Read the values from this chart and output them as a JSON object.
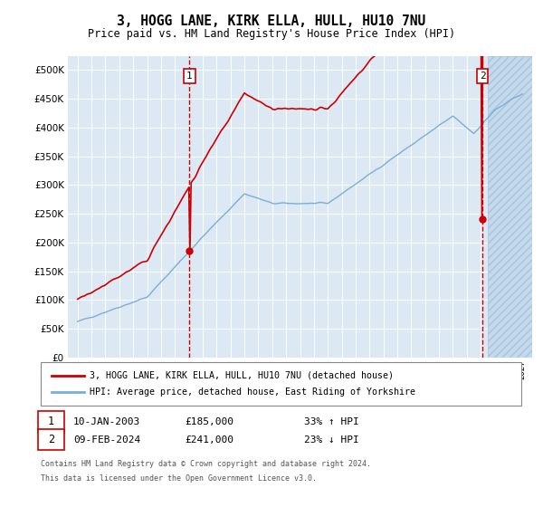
{
  "title": "3, HOGG LANE, KIRK ELLA, HULL, HU10 7NU",
  "subtitle": "Price paid vs. HM Land Registry's House Price Index (HPI)",
  "background_color": "#ffffff",
  "plot_bg_color": "#dce9f5",
  "red_line_color": "#cc0000",
  "blue_line_color": "#7aaed6",
  "annotation1": {
    "label": "1",
    "year": 2003.05,
    "price": 185000
  },
  "annotation2": {
    "label": "2",
    "year": 2024.12,
    "price": 241000
  },
  "legend_line1": "3, HOGG LANE, KIRK ELLA, HULL, HU10 7NU (detached house)",
  "legend_line2": "HPI: Average price, detached house, East Riding of Yorkshire",
  "footer1": "Contains HM Land Registry data © Crown copyright and database right 2024.",
  "footer2": "This data is licensed under the Open Government Licence v3.0.",
  "ylim": [
    0,
    525000
  ],
  "yticks": [
    0,
    50000,
    100000,
    150000,
    200000,
    250000,
    300000,
    350000,
    400000,
    450000,
    500000
  ],
  "xlim_left": 1994.3,
  "xlim_right": 2027.7,
  "hatch_start": 2024.5,
  "note1_date": "10-JAN-2003",
  "note1_price": "£185,000",
  "note1_hpi": "33% ↑ HPI",
  "note2_date": "09-FEB-2024",
  "note2_price": "£241,000",
  "note2_hpi": "23% ↓ HPI"
}
